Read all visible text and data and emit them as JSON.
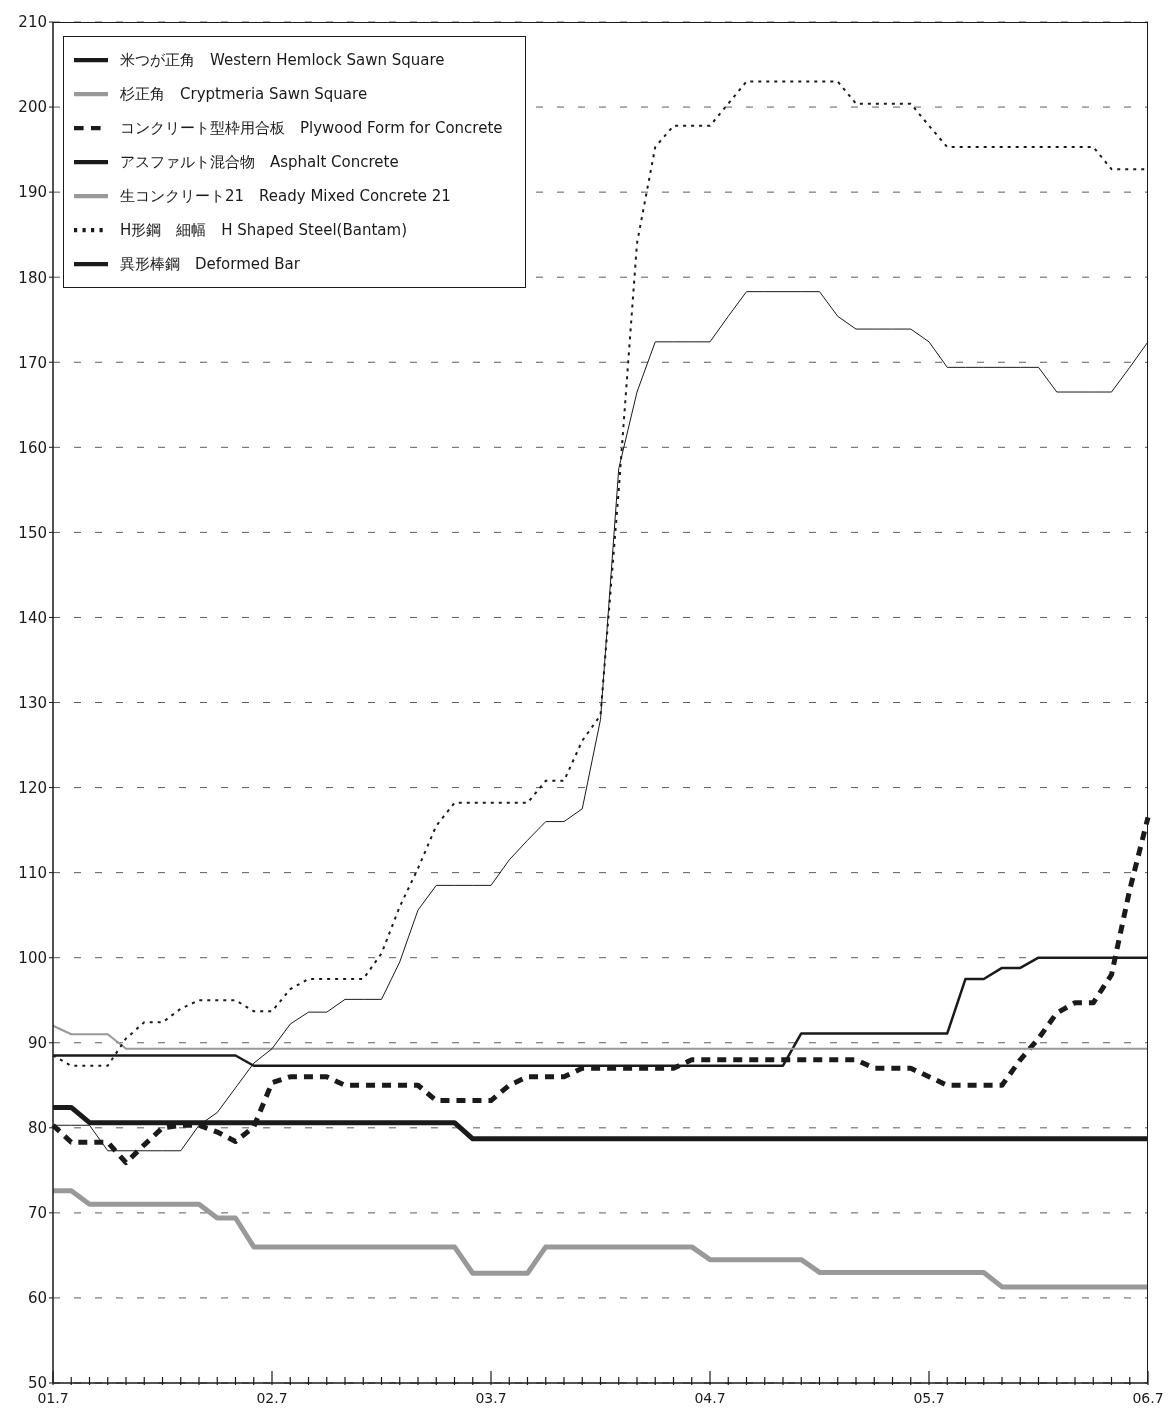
{
  "chart_data": {
    "type": "line",
    "categories": [
      "01.7",
      null,
      null,
      null,
      null,
      null,
      null,
      null,
      null,
      null,
      null,
      null,
      "02.7",
      null,
      null,
      null,
      null,
      null,
      null,
      null,
      null,
      null,
      null,
      null,
      "03.7",
      null,
      null,
      null,
      null,
      null,
      null,
      null,
      null,
      null,
      null,
      null,
      "04.7",
      null,
      null,
      null,
      null,
      null,
      null,
      null,
      null,
      null,
      null,
      null,
      "05.7",
      null,
      null,
      null,
      null,
      null,
      null,
      null,
      null,
      null,
      null,
      null,
      "06.7"
    ],
    "ylim": [
      50,
      210
    ],
    "yticks": [
      50,
      60,
      70,
      80,
      90,
      100,
      110,
      120,
      130,
      140,
      150,
      160,
      170,
      180,
      190,
      200,
      210
    ],
    "grid": "y",
    "legend": "top left",
    "marker": "none",
    "series": [
      {
        "name": "米つが正角　Western Hemlock Sawn Square",
        "color": "#1a1a1a",
        "line_style": "solid",
        "values": [
          82.4,
          82.4,
          80.6,
          80.6,
          80.6,
          80.6,
          80.6,
          80.6,
          80.6,
          80.6,
          80.6,
          80.6,
          80.6,
          80.6,
          80.6,
          80.6,
          80.6,
          80.6,
          80.6,
          80.6,
          80.6,
          80.6,
          80.6,
          78.7,
          78.7,
          78.7,
          78.7,
          78.7,
          78.7,
          78.7,
          78.7,
          78.7,
          78.7,
          78.7,
          78.7,
          78.7,
          78.7,
          78.7,
          78.7,
          78.7,
          78.7,
          78.7,
          78.7,
          78.7,
          78.7,
          78.7,
          78.7,
          78.7,
          78.7,
          78.7,
          78.7,
          78.7,
          78.7,
          78.7,
          78.7,
          78.7,
          78.7,
          78.7,
          78.7,
          78.7,
          78.7
        ]
      },
      {
        "name": "杉正角　Cryptmeria Sawn Square",
        "color": "#999999",
        "line_style": "solid",
        "values": [
          72.6,
          72.6,
          71,
          71,
          71,
          71,
          71,
          71,
          71,
          69.4,
          69.4,
          66,
          66,
          66,
          66,
          66,
          66,
          66,
          66,
          66,
          66,
          66,
          66,
          62.9,
          62.9,
          62.9,
          62.9,
          66,
          66,
          66,
          66,
          66,
          66,
          66,
          66,
          66,
          64.5,
          64.5,
          64.5,
          64.5,
          64.5,
          64.5,
          63,
          63,
          63,
          63,
          63,
          63,
          63,
          63,
          63,
          63,
          61.3,
          61.3,
          61.3,
          61.3,
          61.3,
          61.3,
          61.3,
          61.3,
          61.3
        ]
      },
      {
        "name": "コンクリート型枠用合板　Plywood Form for Concrete",
        "color": "#1a1a1a",
        "line_style": "dashed",
        "values": [
          80.3,
          78.3,
          78.3,
          78.3,
          75.9,
          78,
          80,
          80.3,
          80.3,
          79.5,
          78.4,
          80.1,
          85.3,
          86,
          86,
          86,
          85,
          85,
          85,
          85,
          85,
          83.2,
          83.2,
          83.2,
          83.2,
          85,
          86,
          86,
          86,
          87,
          87,
          87,
          87,
          87,
          87,
          88,
          88,
          88,
          88,
          88,
          88,
          88,
          88,
          88,
          88,
          87,
          87,
          87,
          86,
          85,
          85,
          85,
          85,
          88,
          90.5,
          93.5,
          94.7,
          94.7,
          98,
          108,
          116.5
        ]
      },
      {
        "name": "アスファルト混合物　Asphalt Concrete",
        "color": "#1a1a1a",
        "line_style": "solid",
        "values": [
          88.5,
          88.5,
          88.5,
          88.5,
          88.5,
          88.5,
          88.5,
          88.5,
          88.5,
          88.5,
          88.5,
          87.3,
          87.3,
          87.3,
          87.3,
          87.3,
          87.3,
          87.3,
          87.3,
          87.3,
          87.3,
          87.3,
          87.3,
          87.3,
          87.3,
          87.3,
          87.3,
          87.3,
          87.3,
          87.3,
          87.3,
          87.3,
          87.3,
          87.3,
          87.3,
          87.3,
          87.3,
          87.3,
          87.3,
          87.3,
          87.3,
          91.1,
          91.1,
          91.1,
          91.1,
          91.1,
          91.1,
          91.1,
          91.1,
          91.1,
          97.5,
          97.5,
          98.8,
          98.8,
          100,
          100,
          100,
          100,
          100,
          100,
          100
        ]
      },
      {
        "name": "生コンクリート21　Ready Mixed Concrete 21",
        "color": "#999999",
        "line_style": "solid",
        "values": [
          92,
          91,
          91,
          91,
          89.3,
          89.3,
          89.3,
          89.3,
          89.3,
          89.3,
          89.3,
          89.3,
          89.3,
          89.3,
          89.3,
          89.3,
          89.3,
          89.3,
          89.3,
          89.3,
          89.3,
          89.3,
          89.3,
          89.3,
          89.3,
          89.3,
          89.3,
          89.3,
          89.3,
          89.3,
          89.3,
          89.3,
          89.3,
          89.3,
          89.3,
          89.3,
          89.3,
          89.3,
          89.3,
          89.3,
          89.3,
          89.3,
          89.3,
          89.3,
          89.3,
          89.3,
          89.3,
          89.3,
          89.3,
          89.3,
          89.3,
          89.3,
          89.3,
          89.3,
          89.3,
          89.3,
          89.3,
          89.3,
          89.3,
          89.3,
          89.3
        ]
      },
      {
        "name": "H形鋼　細幅　H Shaped Steel(Bantam)",
        "color": "#1a1a1a",
        "line_style": "dotted",
        "values": [
          88.5,
          87.3,
          87.3,
          87.3,
          90.5,
          92.4,
          92.4,
          94,
          95,
          95,
          95,
          93.7,
          93.7,
          96.3,
          97.5,
          97.5,
          97.5,
          97.5,
          100.5,
          106,
          110.5,
          115.5,
          118.2,
          118.2,
          118.2,
          118.2,
          118.2,
          120.8,
          120.8,
          125.5,
          128.5,
          155,
          184,
          195.3,
          197.8,
          197.8,
          197.8,
          200.4,
          203,
          203,
          203,
          203,
          203,
          203,
          200.4,
          200.4,
          200.4,
          200.4,
          197.8,
          195.3,
          195.3,
          195.3,
          195.3,
          195.3,
          195.3,
          195.3,
          195.3,
          195.3,
          192.7,
          192.7,
          192.7
        ]
      },
      {
        "name": "異形棒鋼　Deformed Bar",
        "color": "#1a1a1a",
        "line_style": "solid",
        "values": [
          80.3,
          80.3,
          80.3,
          77.3,
          77.3,
          77.3,
          77.3,
          77.3,
          80.3,
          81.8,
          84.7,
          87.6,
          89.3,
          92.2,
          93.6,
          93.6,
          95.1,
          95.1,
          95.1,
          99.5,
          105.6,
          108.5,
          108.5,
          108.5,
          108.5,
          111.5,
          113.8,
          116,
          116,
          117.5,
          128,
          157.5,
          166.5,
          172.4,
          172.4,
          172.4,
          172.4,
          175.4,
          178.3,
          178.3,
          178.3,
          178.3,
          178.3,
          175.4,
          173.9,
          173.9,
          173.9,
          173.9,
          172.4,
          169.4,
          169.4,
          169.4,
          169.4,
          169.4,
          169.4,
          166.5,
          166.5,
          166.5,
          166.5,
          169.4,
          172.4
        ]
      }
    ]
  }
}
